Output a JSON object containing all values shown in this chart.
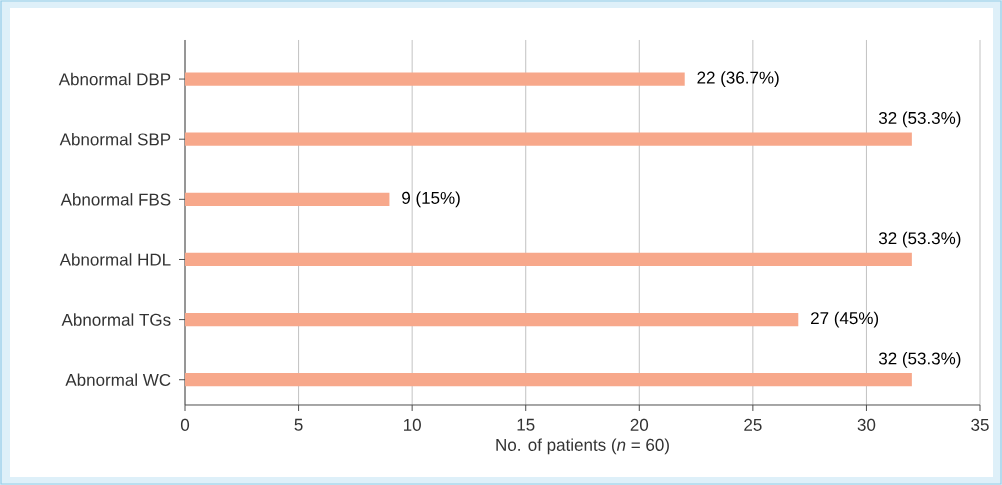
{
  "chart_data": {
    "type": "bar",
    "orientation": "horizontal",
    "categories": [
      "Abnormal DBP",
      "Abnormal SBP",
      "Abnormal FBS",
      "Abnormal HDL",
      "Abnormal TGs",
      "Abnormal WC"
    ],
    "values": [
      22,
      32,
      9,
      32,
      27,
      32
    ],
    "value_labels": [
      "22 (36.7%)",
      "32 (53.3%)",
      "9 (15%)",
      "32 (53.3%)",
      "27 (45%)",
      "32 (53.3%)"
    ],
    "color": "#f7a88b",
    "xlabel": "No. of patients (*n* = 60)",
    "xlim": [
      0,
      35
    ],
    "xticks": [
      0,
      5,
      10,
      15,
      20,
      25,
      30,
      35
    ],
    "grid": "x",
    "legend": false
  }
}
